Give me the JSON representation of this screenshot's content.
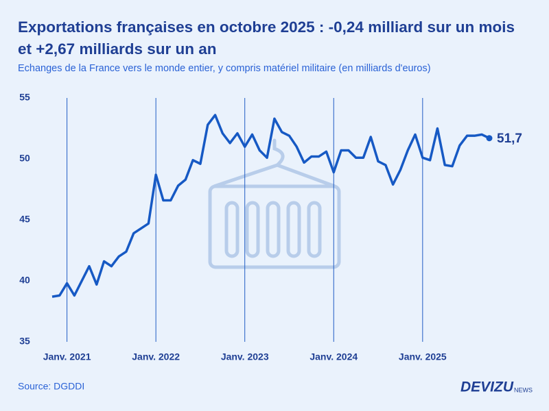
{
  "chart_data": {
    "type": "line",
    "title": "Exportations françaises en octobre 2025 : -0,24 milliard sur un mois et +2,67 milliards sur un an",
    "subtitle": "Echanges de la France vers le monde entier, y compris matériel militaire (en milliards d'euros)",
    "source": "Source: DGDDI",
    "brand": "DEVIZU",
    "brand_suffix": "NEWS",
    "x": [
      "2020-11",
      "2020-12",
      "2021-01",
      "2021-02",
      "2021-03",
      "2021-04",
      "2021-05",
      "2021-06",
      "2021-07",
      "2021-08",
      "2021-09",
      "2021-10",
      "2021-11",
      "2021-12",
      "2022-01",
      "2022-02",
      "2022-03",
      "2022-04",
      "2022-05",
      "2022-06",
      "2022-07",
      "2022-08",
      "2022-09",
      "2022-10",
      "2022-11",
      "2022-12",
      "2023-01",
      "2023-02",
      "2023-03",
      "2023-04",
      "2023-05",
      "2023-06",
      "2023-07",
      "2023-08",
      "2023-09",
      "2023-10",
      "2023-11",
      "2023-12",
      "2024-01",
      "2024-02",
      "2024-03",
      "2024-04",
      "2024-05",
      "2024-06",
      "2024-07",
      "2024-08",
      "2024-09",
      "2024-10",
      "2024-11",
      "2024-12",
      "2025-01",
      "2025-02",
      "2025-03",
      "2025-04",
      "2025-05",
      "2025-06",
      "2025-07",
      "2025-08",
      "2025-09",
      "2025-10"
    ],
    "series": [
      {
        "name": "Exportations",
        "color": "#1659c4",
        "values": [
          38.7,
          38.8,
          39.8,
          38.8,
          40.0,
          41.2,
          39.7,
          41.6,
          41.2,
          42.0,
          42.4,
          43.9,
          44.3,
          44.7,
          48.7,
          46.6,
          46.6,
          47.8,
          48.3,
          49.9,
          49.6,
          52.8,
          53.6,
          52.1,
          51.3,
          52.1,
          51.0,
          52.0,
          50.7,
          50.1,
          53.3,
          52.2,
          51.9,
          51.0,
          49.7,
          50.2,
          50.2,
          50.6,
          48.9,
          50.7,
          50.7,
          50.1,
          50.1,
          51.8,
          49.8,
          49.5,
          47.9,
          49.1,
          50.7,
          52.0,
          50.1,
          49.9,
          52.5,
          49.5,
          49.4,
          51.1,
          51.9,
          51.9,
          52.0,
          51.7
        ],
        "value_labels": [
          null,
          null,
          null,
          null,
          null,
          null,
          null,
          null,
          null,
          null,
          null,
          null,
          null,
          null,
          null,
          null,
          null,
          null,
          null,
          null,
          null,
          null,
          null,
          null,
          null,
          null,
          null,
          null,
          null,
          null,
          null,
          null,
          null,
          null,
          null,
          null,
          null,
          null,
          null,
          null,
          null,
          null,
          null,
          null,
          null,
          null,
          null,
          null,
          null,
          null,
          null,
          null,
          null,
          null,
          null,
          null,
          null,
          null,
          null,
          "51,7"
        ]
      }
    ],
    "xlim": [
      "2020-11",
      "2025-10"
    ],
    "xticks": [
      {
        "value": "2021-01",
        "label": "Janv. 2021"
      },
      {
        "value": "2022-01",
        "label": "Janv. 2022"
      },
      {
        "value": "2023-01",
        "label": "Janv. 2023"
      },
      {
        "value": "2024-01",
        "label": "Janv. 2024"
      },
      {
        "value": "2025-01",
        "label": "Janv. 2025"
      }
    ],
    "ylim": [
      35,
      55
    ],
    "yticks": [
      35,
      40,
      45,
      50,
      55
    ],
    "grid": "x"
  }
}
